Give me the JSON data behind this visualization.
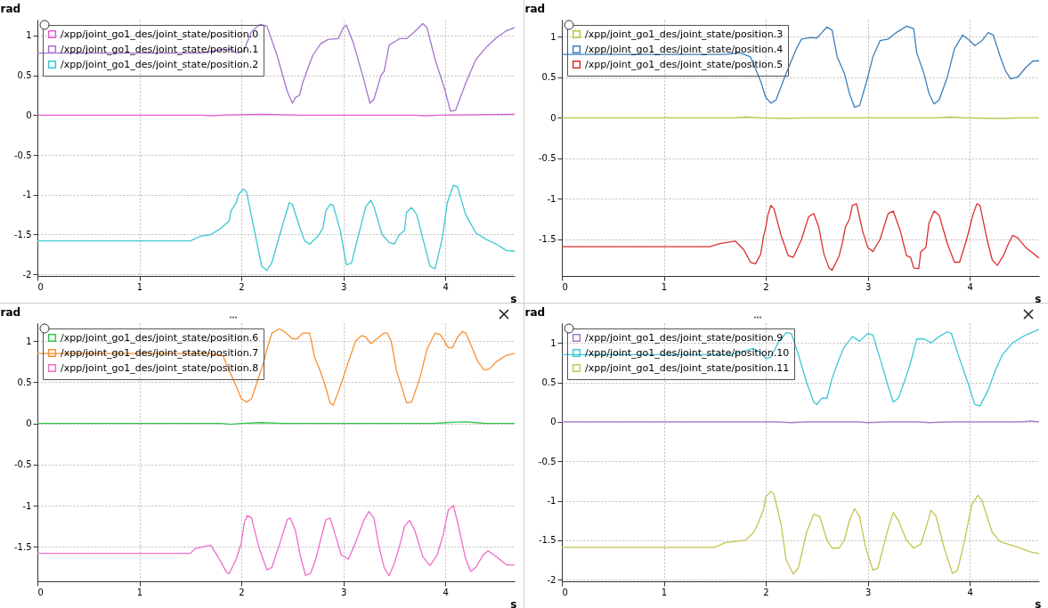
{
  "chart_data": [
    {
      "type": "line",
      "xlabel": "s",
      "ylabel": "rad",
      "xlim": [
        0,
        4.68
      ],
      "ylim": [
        -2.02,
        1.2
      ],
      "xticks": [
        0,
        1,
        2,
        3,
        4
      ],
      "yticks": [
        -2,
        -1.5,
        -1,
        -0.5,
        0,
        0.5,
        1
      ],
      "grid": true,
      "legend": "top left",
      "series": [
        {
          "name": "/xpp/joint_go1_des/joint_state/position.0",
          "color": "#e65bd0",
          "x": [
            0,
            1.6,
            1.7,
            1.8,
            2.2,
            2.6,
            3.0,
            3.7,
            3.8,
            3.95,
            4.68
          ],
          "values": [
            0,
            0,
            -0.01,
            0,
            0.01,
            0,
            0,
            0,
            -0.01,
            0,
            0.01
          ]
        },
        {
          "name": "/xpp/joint_go1_des/joint_state/position.1",
          "color": "#a374d0",
          "x": [
            0,
            1.6,
            1.8,
            1.9,
            1.95,
            2.02,
            2.1,
            2.18,
            2.25,
            2.35,
            2.45,
            2.5,
            2.53,
            2.57,
            2.6,
            2.65,
            2.7,
            2.78,
            2.85,
            2.95,
            3.0,
            3.03,
            3.1,
            3.2,
            3.26,
            3.3,
            3.37,
            3.4,
            3.43,
            3.45,
            3.5,
            3.55,
            3.62,
            3.7,
            3.78,
            3.82,
            3.9,
            4.0,
            4.05,
            4.1,
            4.2,
            4.3,
            4.4,
            4.5,
            4.6,
            4.68
          ],
          "values": [
            0.78,
            0.78,
            0.82,
            0.83,
            0.78,
            0.8,
            1.05,
            1.14,
            1.12,
            0.75,
            0.3,
            0.15,
            0.22,
            0.25,
            0.4,
            0.58,
            0.75,
            0.9,
            0.95,
            0.96,
            1.1,
            1.13,
            0.9,
            0.45,
            0.15,
            0.2,
            0.5,
            0.55,
            0.75,
            0.88,
            0.92,
            0.96,
            0.96,
            1.05,
            1.15,
            1.1,
            0.7,
            0.3,
            0.05,
            0.06,
            0.4,
            0.7,
            0.85,
            0.97,
            1.06,
            1.1
          ]
        },
        {
          "name": "/xpp/joint_go1_des/joint_state/position.2",
          "color": "#3cc8d2",
          "x": [
            0,
            1.5,
            1.6,
            1.7,
            1.8,
            1.88,
            1.9,
            1.95,
            1.97,
            2.02,
            2.05,
            2.12,
            2.2,
            2.25,
            2.3,
            2.4,
            2.47,
            2.5,
            2.57,
            2.62,
            2.67,
            2.75,
            2.8,
            2.83,
            2.87,
            2.9,
            2.97,
            3.03,
            3.08,
            3.15,
            3.22,
            3.27,
            3.3,
            3.38,
            3.45,
            3.5,
            3.55,
            3.6,
            3.62,
            3.67,
            3.72,
            3.8,
            3.85,
            3.9,
            3.97,
            4.02,
            4.08,
            4.12,
            4.2,
            4.3,
            4.4,
            4.5,
            4.6,
            4.68
          ],
          "values": [
            -1.58,
            -1.58,
            -1.52,
            -1.5,
            -1.42,
            -1.33,
            -1.2,
            -1.1,
            -1.0,
            -0.93,
            -0.96,
            -1.4,
            -1.9,
            -1.95,
            -1.85,
            -1.4,
            -1.1,
            -1.12,
            -1.4,
            -1.58,
            -1.62,
            -1.52,
            -1.42,
            -1.2,
            -1.12,
            -1.13,
            -1.45,
            -1.88,
            -1.86,
            -1.5,
            -1.15,
            -1.07,
            -1.15,
            -1.5,
            -1.6,
            -1.62,
            -1.5,
            -1.45,
            -1.22,
            -1.16,
            -1.25,
            -1.65,
            -1.9,
            -1.93,
            -1.55,
            -1.1,
            -0.88,
            -0.9,
            -1.25,
            -1.48,
            -1.56,
            -1.62,
            -1.7,
            -1.71
          ]
        }
      ]
    },
    {
      "type": "line",
      "xlabel": "s",
      "ylabel": "rad",
      "xlim": [
        0,
        4.68
      ],
      "ylim": [
        -1.95,
        1.21
      ],
      "xticks": [
        0,
        1,
        2,
        3,
        4
      ],
      "yticks": [
        -1.5,
        -1,
        -0.5,
        0,
        0.5,
        1
      ],
      "grid": true,
      "legend": "top left",
      "series": [
        {
          "name": "/xpp/joint_go1_des/joint_state/position.3",
          "color": "#bcc43c",
          "x": [
            0,
            1.7,
            1.8,
            1.95,
            2.2,
            2.4,
            2.6,
            2.7,
            3.7,
            3.8,
            3.95,
            4.2,
            4.35,
            4.5,
            4.68
          ],
          "values": [
            0,
            0,
            0.01,
            0,
            -0.01,
            0,
            0,
            0,
            0,
            0.01,
            0,
            -0.01,
            -0.01,
            0,
            0
          ]
        },
        {
          "name": "/xpp/joint_go1_des/joint_state/position.4",
          "color": "#3a7fbf",
          "x": [
            0,
            1.6,
            1.75,
            1.85,
            1.9,
            1.95,
            2.0,
            2.05,
            2.1,
            2.2,
            2.25,
            2.3,
            2.35,
            2.45,
            2.5,
            2.55,
            2.6,
            2.65,
            2.7,
            2.77,
            2.82,
            2.87,
            2.92,
            3.0,
            3.05,
            3.12,
            3.2,
            3.28,
            3.38,
            3.45,
            3.48,
            3.55,
            3.6,
            3.65,
            3.7,
            3.78,
            3.85,
            3.93,
            4.0,
            4.05,
            4.12,
            4.18,
            4.23,
            4.3,
            4.35,
            4.4,
            4.47,
            4.55,
            4.62,
            4.68
          ],
          "values": [
            0.78,
            0.78,
            0.8,
            0.75,
            0.6,
            0.45,
            0.25,
            0.18,
            0.22,
            0.55,
            0.7,
            0.85,
            0.97,
            0.99,
            0.98,
            1.05,
            1.12,
            1.08,
            0.75,
            0.55,
            0.3,
            0.13,
            0.15,
            0.5,
            0.75,
            0.95,
            0.97,
            1.05,
            1.13,
            1.1,
            0.8,
            0.55,
            0.3,
            0.17,
            0.22,
            0.5,
            0.85,
            1.02,
            0.95,
            0.89,
            0.95,
            1.05,
            1.02,
            0.75,
            0.58,
            0.48,
            0.5,
            0.62,
            0.7,
            0.7
          ]
        },
        {
          "name": "/xpp/joint_go1_des/joint_state/position.5",
          "color": "#d93030",
          "x": [
            0,
            1.45,
            1.55,
            1.7,
            1.78,
            1.85,
            1.9,
            1.95,
            1.98,
            2.0,
            2.02,
            2.05,
            2.08,
            2.15,
            2.22,
            2.27,
            2.35,
            2.42,
            2.47,
            2.52,
            2.57,
            2.62,
            2.65,
            2.72,
            2.75,
            2.78,
            2.82,
            2.85,
            2.89,
            2.95,
            3.0,
            3.05,
            3.12,
            3.2,
            3.25,
            3.32,
            3.38,
            3.42,
            3.45,
            3.5,
            3.52,
            3.57,
            3.6,
            3.65,
            3.7,
            3.78,
            3.85,
            3.9,
            3.97,
            4.03,
            4.07,
            4.1,
            4.17,
            4.22,
            4.27,
            4.33,
            4.37,
            4.42,
            4.47,
            4.55,
            4.68
          ],
          "values": [
            -1.59,
            -1.59,
            -1.55,
            -1.52,
            -1.62,
            -1.78,
            -1.8,
            -1.68,
            -1.45,
            -1.35,
            -1.2,
            -1.08,
            -1.12,
            -1.45,
            -1.7,
            -1.72,
            -1.5,
            -1.22,
            -1.18,
            -1.35,
            -1.68,
            -1.85,
            -1.88,
            -1.7,
            -1.55,
            -1.35,
            -1.25,
            -1.08,
            -1.06,
            -1.4,
            -1.6,
            -1.65,
            -1.5,
            -1.18,
            -1.15,
            -1.4,
            -1.7,
            -1.72,
            -1.85,
            -1.86,
            -1.65,
            -1.6,
            -1.3,
            -1.15,
            -1.2,
            -1.55,
            -1.78,
            -1.78,
            -1.5,
            -1.2,
            -1.06,
            -1.08,
            -1.5,
            -1.75,
            -1.82,
            -1.7,
            -1.58,
            -1.45,
            -1.48,
            -1.6,
            -1.73
          ]
        }
      ]
    },
    {
      "type": "line",
      "xlabel": "s",
      "ylabel": "rad",
      "xlim": [
        0,
        4.68
      ],
      "ylim": [
        -1.92,
        1.22
      ],
      "xticks": [
        0,
        1,
        2,
        3,
        4
      ],
      "yticks": [
        -1.5,
        -1,
        -0.5,
        0,
        0.5,
        1
      ],
      "grid": true,
      "legend": "top left",
      "series": [
        {
          "name": "/xpp/joint_go1_des/joint_state/position.6",
          "color": "#33c44a",
          "x": [
            0,
            1.8,
            1.9,
            2.0,
            2.2,
            2.4,
            2.5,
            3.9,
            4.0,
            4.2,
            4.3,
            4.4,
            4.68
          ],
          "values": [
            0,
            0,
            -0.01,
            0,
            0.01,
            0,
            0,
            0,
            0.01,
            0.02,
            0.01,
            0,
            0
          ]
        },
        {
          "name": "/xpp/joint_go1_des/joint_state/position.7",
          "color": "#f7902e",
          "x": [
            0,
            1.7,
            1.82,
            1.88,
            1.95,
            2.0,
            2.05,
            2.1,
            2.18,
            2.22,
            2.25,
            2.3,
            2.37,
            2.42,
            2.5,
            2.55,
            2.6,
            2.67,
            2.72,
            2.77,
            2.82,
            2.87,
            2.9,
            2.97,
            3.05,
            3.12,
            3.18,
            3.22,
            3.27,
            3.32,
            3.4,
            3.43,
            3.47,
            3.52,
            3.57,
            3.62,
            3.67,
            3.75,
            3.82,
            3.9,
            3.95,
            4.03,
            4.07,
            4.12,
            4.17,
            4.2,
            4.27,
            4.32,
            4.38,
            4.43,
            4.5,
            4.6,
            4.68
          ],
          "values": [
            0.85,
            0.85,
            0.82,
            0.65,
            0.45,
            0.3,
            0.26,
            0.3,
            0.6,
            0.75,
            0.9,
            1.1,
            1.15,
            1.12,
            1.03,
            1.03,
            1.1,
            1.1,
            0.8,
            0.65,
            0.47,
            0.25,
            0.22,
            0.45,
            0.75,
            1.0,
            1.07,
            1.05,
            0.97,
            1.02,
            1.1,
            1.1,
            1.0,
            0.65,
            0.45,
            0.25,
            0.26,
            0.55,
            0.9,
            1.1,
            1.08,
            0.92,
            0.92,
            1.05,
            1.12,
            1.1,
            0.9,
            0.75,
            0.65,
            0.66,
            0.75,
            0.83,
            0.85
          ]
        },
        {
          "name": "/xpp/joint_go1_des/joint_state/position.8",
          "color": "#ee6ec8",
          "x": [
            0,
            1.5,
            1.55,
            1.7,
            1.77,
            1.85,
            1.88,
            1.95,
            2.0,
            2.03,
            2.06,
            2.1,
            2.17,
            2.25,
            2.3,
            2.38,
            2.45,
            2.48,
            2.53,
            2.58,
            2.63,
            2.68,
            2.73,
            2.78,
            2.83,
            2.87,
            2.92,
            2.98,
            3.05,
            3.12,
            3.2,
            3.25,
            3.3,
            3.35,
            3.4,
            3.45,
            3.5,
            3.55,
            3.6,
            3.65,
            3.7,
            3.78,
            3.85,
            3.92,
            3.98,
            4.03,
            4.08,
            4.12,
            4.2,
            4.25,
            4.3,
            4.37,
            4.42,
            4.5,
            4.6,
            4.68
          ],
          "values": [
            -1.58,
            -1.58,
            -1.52,
            -1.48,
            -1.62,
            -1.8,
            -1.83,
            -1.65,
            -1.45,
            -1.2,
            -1.12,
            -1.15,
            -1.5,
            -1.78,
            -1.75,
            -1.45,
            -1.17,
            -1.15,
            -1.3,
            -1.62,
            -1.85,
            -1.82,
            -1.65,
            -1.4,
            -1.17,
            -1.15,
            -1.35,
            -1.6,
            -1.65,
            -1.45,
            -1.18,
            -1.07,
            -1.15,
            -1.5,
            -1.75,
            -1.85,
            -1.7,
            -1.5,
            -1.25,
            -1.18,
            -1.3,
            -1.62,
            -1.73,
            -1.6,
            -1.35,
            -1.05,
            -1.0,
            -1.2,
            -1.65,
            -1.8,
            -1.75,
            -1.6,
            -1.55,
            -1.62,
            -1.72,
            -1.72
          ]
        }
      ]
    },
    {
      "type": "line",
      "xlabel": "s",
      "ylabel": "rad",
      "xlim": [
        0,
        4.68
      ],
      "ylim": [
        -2.02,
        1.25
      ],
      "xticks": [
        0,
        1,
        2,
        3,
        4
      ],
      "yticks": [
        -2,
        -1.5,
        -1,
        -0.5,
        0,
        0.5,
        1
      ],
      "grid": true,
      "legend": "top left",
      "series": [
        {
          "name": "/xpp/joint_go1_des/joint_state/position.9",
          "color": "#a37bc9",
          "x": [
            0,
            2.1,
            2.25,
            2.4,
            2.6,
            2.9,
            3.0,
            3.2,
            3.5,
            3.6,
            3.8,
            4.5,
            4.6,
            4.68
          ],
          "values": [
            0,
            0,
            -0.01,
            0,
            0,
            0,
            -0.01,
            0,
            0,
            -0.01,
            0,
            0,
            0.01,
            0
          ]
        },
        {
          "name": "/xpp/joint_go1_des/joint_state/position.10",
          "color": "#3cc8d8",
          "x": [
            0,
            1.65,
            1.8,
            1.87,
            1.95,
            2.0,
            2.05,
            2.12,
            2.2,
            2.25,
            2.32,
            2.4,
            2.47,
            2.5,
            2.55,
            2.6,
            2.65,
            2.72,
            2.77,
            2.85,
            2.92,
            3.0,
            3.05,
            3.12,
            3.2,
            3.25,
            3.3,
            3.37,
            3.42,
            3.48,
            3.55,
            3.62,
            3.7,
            3.78,
            3.82,
            3.9,
            3.98,
            4.05,
            4.1,
            4.18,
            4.25,
            4.32,
            4.42,
            4.55,
            4.68
          ],
          "values": [
            0.85,
            0.85,
            0.9,
            0.93,
            0.88,
            0.8,
            0.82,
            1.0,
            1.13,
            1.12,
            0.85,
            0.5,
            0.25,
            0.22,
            0.3,
            0.3,
            0.55,
            0.8,
            0.95,
            1.08,
            1.02,
            1.12,
            1.1,
            0.8,
            0.45,
            0.25,
            0.3,
            0.55,
            0.75,
            1.05,
            1.05,
            1.0,
            1.08,
            1.14,
            1.12,
            0.8,
            0.5,
            0.22,
            0.2,
            0.4,
            0.65,
            0.85,
            1.0,
            1.1,
            1.17
          ]
        },
        {
          "name": "/xpp/joint_go1_des/joint_state/position.11",
          "color": "#c4c450",
          "x": [
            0,
            1.5,
            1.6,
            1.8,
            1.88,
            1.92,
            1.98,
            2.0,
            2.05,
            2.08,
            2.15,
            2.2,
            2.27,
            2.32,
            2.4,
            2.47,
            2.53,
            2.6,
            2.65,
            2.72,
            2.77,
            2.82,
            2.87,
            2.92,
            2.98,
            3.05,
            3.1,
            3.2,
            3.25,
            3.3,
            3.38,
            3.45,
            3.52,
            3.58,
            3.62,
            3.67,
            3.75,
            3.83,
            3.88,
            3.95,
            4.02,
            4.08,
            4.12,
            4.22,
            4.3,
            4.45,
            4.6,
            4.68
          ],
          "values": [
            -1.59,
            -1.59,
            -1.53,
            -1.5,
            -1.4,
            -1.3,
            -1.1,
            -0.95,
            -0.88,
            -0.92,
            -1.3,
            -1.75,
            -1.93,
            -1.85,
            -1.4,
            -1.17,
            -1.2,
            -1.5,
            -1.6,
            -1.6,
            -1.5,
            -1.25,
            -1.1,
            -1.2,
            -1.6,
            -1.88,
            -1.85,
            -1.35,
            -1.15,
            -1.25,
            -1.5,
            -1.6,
            -1.55,
            -1.3,
            -1.12,
            -1.2,
            -1.6,
            -1.92,
            -1.88,
            -1.5,
            -1.05,
            -0.93,
            -1.0,
            -1.4,
            -1.52,
            -1.58,
            -1.65,
            -1.67
          ]
        }
      ]
    }
  ]
}
